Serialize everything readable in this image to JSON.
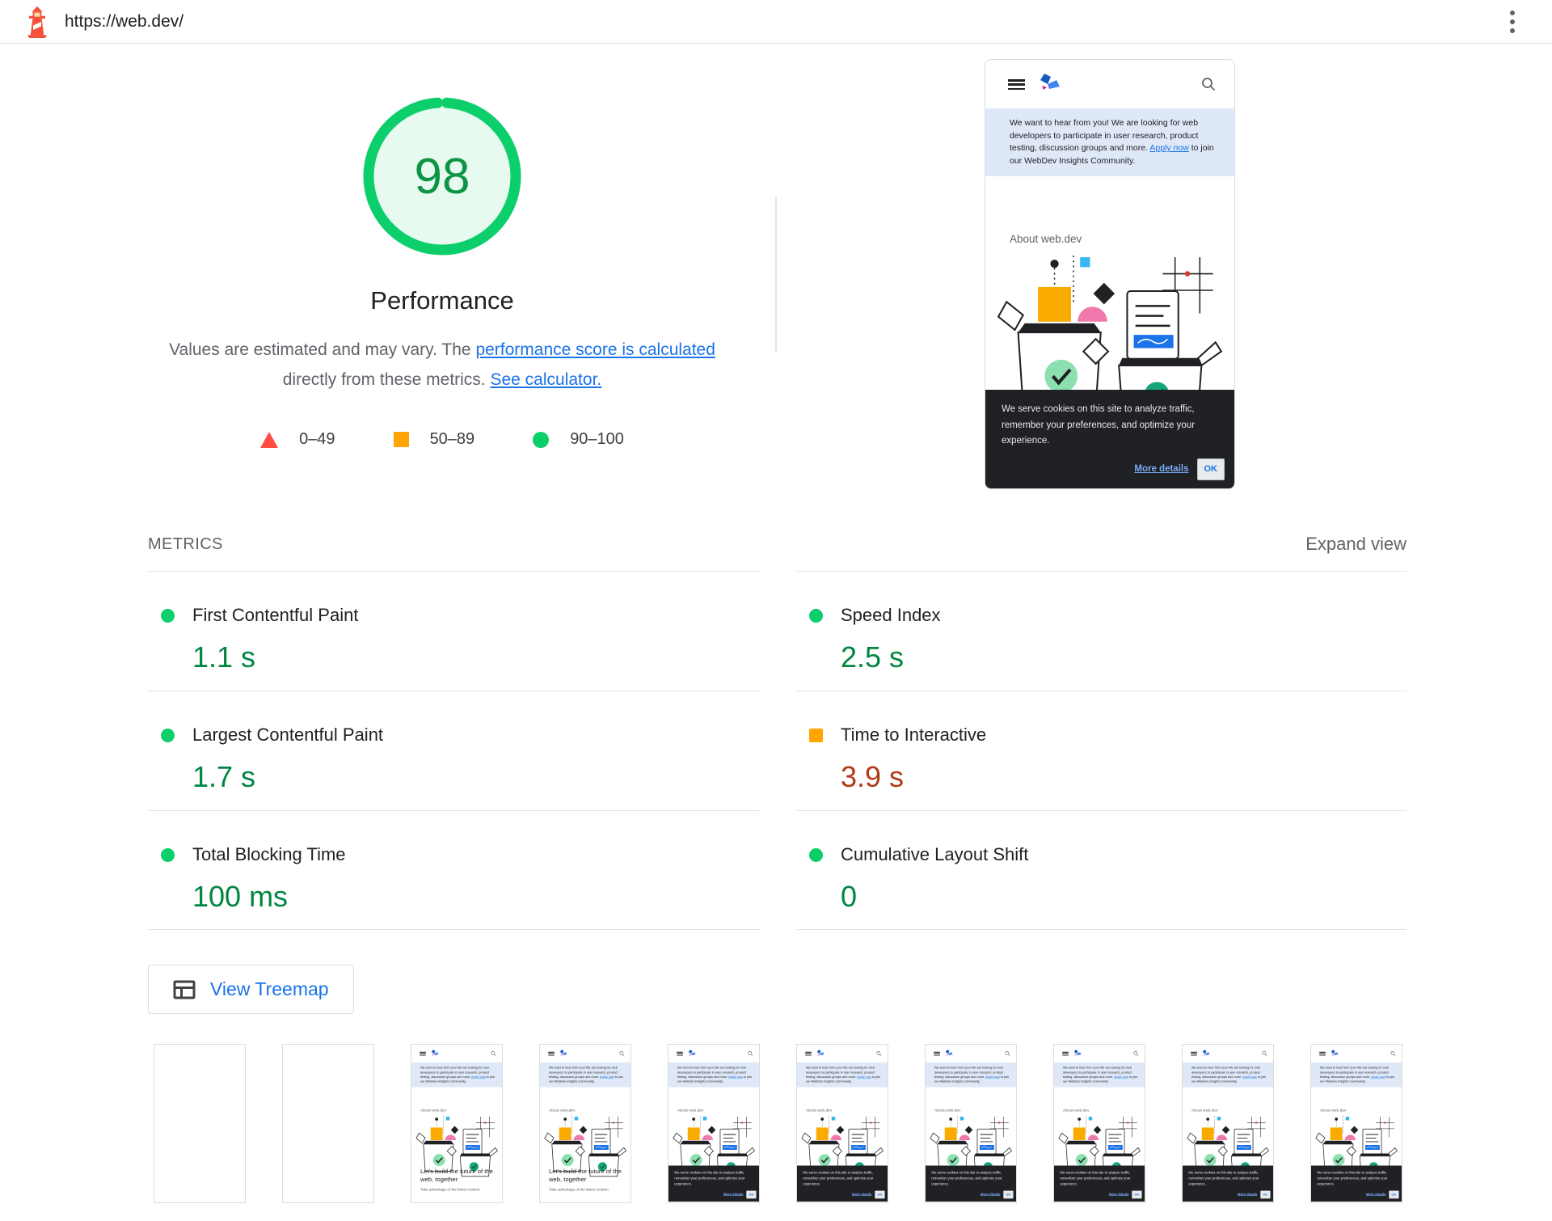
{
  "topbar": {
    "url": "https://web.dev/"
  },
  "score": {
    "value": "98",
    "percent": 98,
    "category": "Performance",
    "description": {
      "text1": "Values are estimated and may vary. The ",
      "link1": "performance score is calculated",
      "text2": " directly from these metrics. ",
      "link2": "See calculator."
    },
    "legend": [
      {
        "shape": "triangle",
        "color": "#ff4e42",
        "label": "0–49"
      },
      {
        "shape": "square",
        "color": "#ffa400",
        "label": "50–89"
      },
      {
        "shape": "circle",
        "color": "#0cce6b",
        "label": "90–100"
      }
    ]
  },
  "preview": {
    "banner": {
      "text1": "We want to hear from you! We are looking for web developers to participate in user research, product testing, discussion groups and more. ",
      "link": "Apply now",
      "text2": " to join our WebDev Insights Community."
    },
    "about_heading": "About web.dev",
    "headline": "Let's build the future of the web, together",
    "subline": "Take advantage of the latest modern",
    "cookie": {
      "text": "We serve cookies on this site to analyze traffic, remember your preferences, and optimize your experience.",
      "link": "More details",
      "ok": "OK"
    }
  },
  "metrics": {
    "heading": "METRICS",
    "expand": "Expand view",
    "items": [
      {
        "name": "First Contentful Paint",
        "value": "1.1 s",
        "status": "pass"
      },
      {
        "name": "Speed Index",
        "value": "2.5 s",
        "status": "pass"
      },
      {
        "name": "Largest Contentful Paint",
        "value": "1.7 s",
        "status": "pass"
      },
      {
        "name": "Time to Interactive",
        "value": "3.9 s",
        "status": "average"
      },
      {
        "name": "Total Blocking Time",
        "value": "100 ms",
        "status": "pass"
      },
      {
        "name": "Cumulative Layout Shift",
        "value": "0",
        "status": "pass"
      }
    ]
  },
  "treemap": {
    "label": "View Treemap"
  },
  "filmstrip": {
    "frames": [
      "blank",
      "blank",
      "page",
      "page",
      "page-cookie",
      "page-cookie",
      "page-cookie",
      "page-cookie",
      "page-cookie",
      "page-cookie"
    ]
  },
  "colors": {
    "pass_icon": "#0cce6b",
    "pass_text": "#018642",
    "average_icon": "#ffa400",
    "average_text": "#b13a19",
    "fail_icon": "#ff4e42",
    "link_blue": "#1a73e8"
  }
}
